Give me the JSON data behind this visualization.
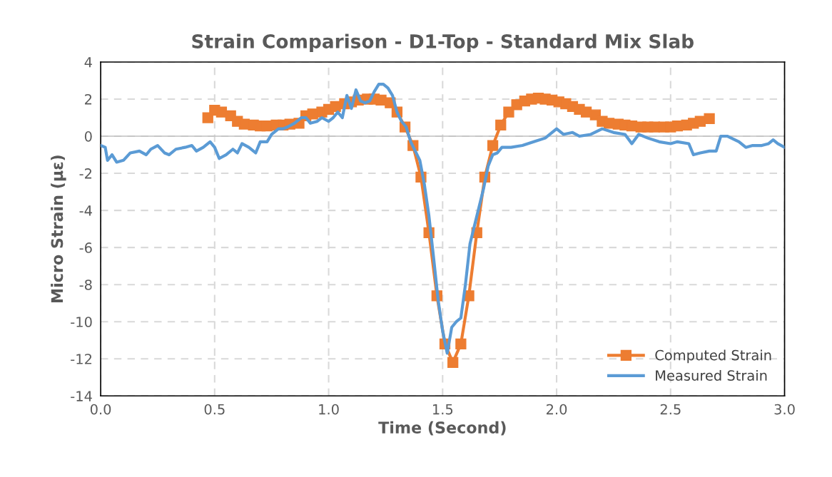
{
  "chart_data": {
    "type": "line",
    "title": "Strain Comparison - D1-Top - Standard Mix Slab",
    "xlabel": "Time (Second)",
    "ylabel": "Micro Strain (με)",
    "xlim": [
      0,
      3
    ],
    "xticks": [
      {
        "value": 0,
        "label": "0.0"
      },
      {
        "value": 0.5,
        "label": "0.5"
      },
      {
        "value": 1,
        "label": "1.0"
      },
      {
        "value": 1.5,
        "label": "1.5"
      },
      {
        "value": 2,
        "label": "2.0"
      },
      {
        "value": 2.5,
        "label": "2.5"
      },
      {
        "value": 3,
        "label": "3.0"
      }
    ],
    "ylim": [
      -14,
      4
    ],
    "yticks": [
      -14,
      -12,
      -10,
      -8,
      -6,
      -4,
      -2,
      0,
      2,
      4
    ],
    "grid": true,
    "legend": "bottom right",
    "ref_lines": [
      {
        "axis": "y",
        "value": 0,
        "color": "#bfbfbf",
        "line_style": "solid"
      }
    ],
    "series": [
      {
        "name": "Computed Strain",
        "color": "#ed7d31",
        "marker": "square",
        "line_style": "solid",
        "x": [
          0.47,
          0.5,
          0.53,
          0.57,
          0.6,
          0.63,
          0.67,
          0.7,
          0.73,
          0.77,
          0.8,
          0.83,
          0.87,
          0.9,
          0.93,
          0.97,
          1.0,
          1.03,
          1.07,
          1.1,
          1.13,
          1.17,
          1.2,
          1.23,
          1.27,
          1.3,
          1.335,
          1.37,
          1.405,
          1.44,
          1.475,
          1.51,
          1.545,
          1.58,
          1.615,
          1.65,
          1.685,
          1.72,
          1.755,
          1.79,
          1.825,
          1.86,
          1.89,
          1.92,
          1.95,
          1.98,
          2.01,
          2.04,
          2.07,
          2.1,
          2.13,
          2.17,
          2.2,
          2.23,
          2.27,
          2.3,
          2.33,
          2.37,
          2.4,
          2.43,
          2.47,
          2.5,
          2.53,
          2.57,
          2.6,
          2.63,
          2.67
        ],
        "values": [
          1.0,
          1.4,
          1.3,
          1.1,
          0.8,
          0.65,
          0.6,
          0.55,
          0.55,
          0.6,
          0.6,
          0.65,
          0.7,
          1.1,
          1.2,
          1.3,
          1.45,
          1.6,
          1.75,
          1.85,
          1.95,
          2.0,
          2.0,
          1.95,
          1.8,
          1.3,
          0.5,
          -0.5,
          -2.2,
          -5.2,
          -8.6,
          -11.2,
          -12.2,
          -11.2,
          -8.6,
          -5.2,
          -2.2,
          -0.5,
          0.6,
          1.3,
          1.7,
          1.9,
          2.0,
          2.05,
          2.0,
          1.95,
          1.85,
          1.75,
          1.6,
          1.45,
          1.3,
          1.15,
          0.8,
          0.7,
          0.65,
          0.6,
          0.55,
          0.5,
          0.5,
          0.5,
          0.5,
          0.5,
          0.55,
          0.6,
          0.7,
          0.8,
          0.95
        ]
      },
      {
        "name": "Measured Strain",
        "color": "#5b9bd5",
        "marker": "none",
        "line_style": "solid",
        "x": [
          0,
          0.02,
          0.03,
          0.05,
          0.07,
          0.1,
          0.13,
          0.17,
          0.2,
          0.22,
          0.25,
          0.28,
          0.3,
          0.33,
          0.37,
          0.4,
          0.42,
          0.45,
          0.48,
          0.5,
          0.52,
          0.55,
          0.58,
          0.6,
          0.62,
          0.65,
          0.68,
          0.7,
          0.73,
          0.75,
          0.78,
          0.8,
          0.82,
          0.85,
          0.88,
          0.9,
          0.92,
          0.95,
          0.97,
          1.0,
          1.02,
          1.04,
          1.06,
          1.08,
          1.1,
          1.12,
          1.14,
          1.16,
          1.18,
          1.2,
          1.22,
          1.24,
          1.26,
          1.28,
          1.3,
          1.32,
          1.34,
          1.36,
          1.38,
          1.4,
          1.42,
          1.44,
          1.46,
          1.48,
          1.5,
          1.52,
          1.54,
          1.56,
          1.58,
          1.6,
          1.62,
          1.64,
          1.66,
          1.68,
          1.7,
          1.72,
          1.74,
          1.76,
          1.8,
          1.85,
          1.9,
          1.95,
          2.0,
          2.03,
          2.07,
          2.1,
          2.15,
          2.2,
          2.25,
          2.3,
          2.33,
          2.36,
          2.4,
          2.45,
          2.5,
          2.53,
          2.58,
          2.6,
          2.63,
          2.67,
          2.7,
          2.72,
          2.75,
          2.8,
          2.83,
          2.86,
          2.9,
          2.93,
          2.95,
          2.97,
          3.0
        ],
        "values": [
          -0.5,
          -0.6,
          -1.3,
          -1.0,
          -1.4,
          -1.3,
          -0.9,
          -0.8,
          -1.0,
          -0.7,
          -0.5,
          -0.9,
          -1.0,
          -0.7,
          -0.6,
          -0.5,
          -0.8,
          -0.6,
          -0.3,
          -0.6,
          -1.2,
          -1.0,
          -0.7,
          -0.9,
          -0.4,
          -0.6,
          -0.9,
          -0.3,
          -0.3,
          0.1,
          0.4,
          0.4,
          0.5,
          0.7,
          1.0,
          1.0,
          0.7,
          0.8,
          1.0,
          0.8,
          1.0,
          1.3,
          1.0,
          2.2,
          1.5,
          2.5,
          1.9,
          1.8,
          1.9,
          2.4,
          2.8,
          2.8,
          2.6,
          2.2,
          1.3,
          0.8,
          0.5,
          -0.3,
          -0.8,
          -1.3,
          -2.6,
          -4.3,
          -6.5,
          -8.8,
          -10.5,
          -11.7,
          -10.3,
          -10.0,
          -9.8,
          -8.0,
          -5.8,
          -4.8,
          -3.8,
          -2.8,
          -1.6,
          -1.0,
          -0.9,
          -0.6,
          -0.6,
          -0.5,
          -0.3,
          -0.1,
          0.4,
          0.1,
          0.2,
          0.0,
          0.1,
          0.4,
          0.2,
          0.1,
          -0.4,
          0.1,
          -0.1,
          -0.3,
          -0.4,
          -0.3,
          -0.4,
          -1.0,
          -0.9,
          -0.8,
          -0.8,
          0.0,
          0.0,
          -0.3,
          -0.6,
          -0.5,
          -0.5,
          -0.4,
          -0.2,
          -0.4,
          -0.6
        ]
      }
    ]
  }
}
